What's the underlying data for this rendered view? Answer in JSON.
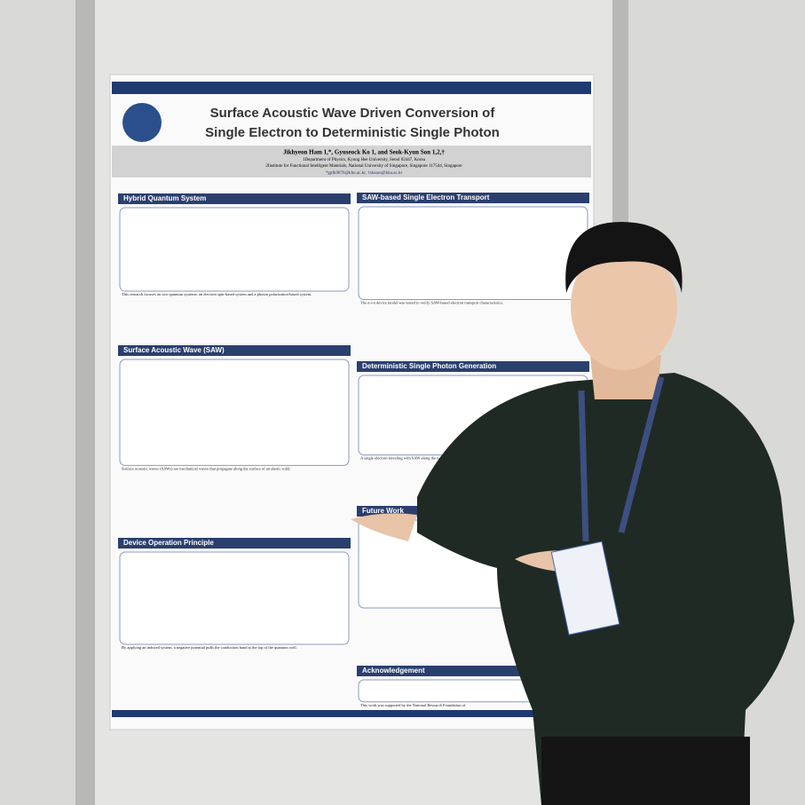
{
  "poster": {
    "title": [
      "Surface Acoustic Wave Driven Conversion of",
      "Single Electron to Deterministic Single Photon"
    ],
    "authors": "Jikhyeon Ham 1,*, Gyuseock Ko 1, and Seok-Kyun Son 1,2,†",
    "affiliations": [
      "1Department of Physics, Kyung Hee University, Seoul 02447, Korea",
      "2Institute for Functional Intelligent Materials, National University of Singapore, Singapore 117544, Singapore"
    ],
    "emails": "*gpfk9876@khu.ac.kr, †sksson@khu.ac.kr",
    "left_sections": [
      {
        "heading": "Hybrid Quantum System",
        "text": "This research focuses on two quantum systems: an electron spin-based system and a photon polarization-based system."
      },
      {
        "heading": "Surface Acoustic Wave (SAW)",
        "text": "Surface acoustic waves (SAWs) are mechanical waves that propagate along the surface of an elastic solid."
      },
      {
        "heading": "Device Operation Principle",
        "text": "By applying an induced system, a negative potential pulls the conduction band at the top of the quantum well."
      }
    ],
    "right_sections": [
      {
        "heading": "SAW-based Single Electron Transport",
        "text": "The n-i-n device model was tested to verify SAW-based electron transport characteristics."
      },
      {
        "heading": "Deterministic Single Photon Generation",
        "text": "A single electron traveling with SAW along the n-i-p junction"
      },
      {
        "heading": "Future Work",
        "text": ""
      },
      {
        "heading": "Acknowledgement",
        "text": "This work was supported by the National Research Foundation of"
      }
    ]
  }
}
